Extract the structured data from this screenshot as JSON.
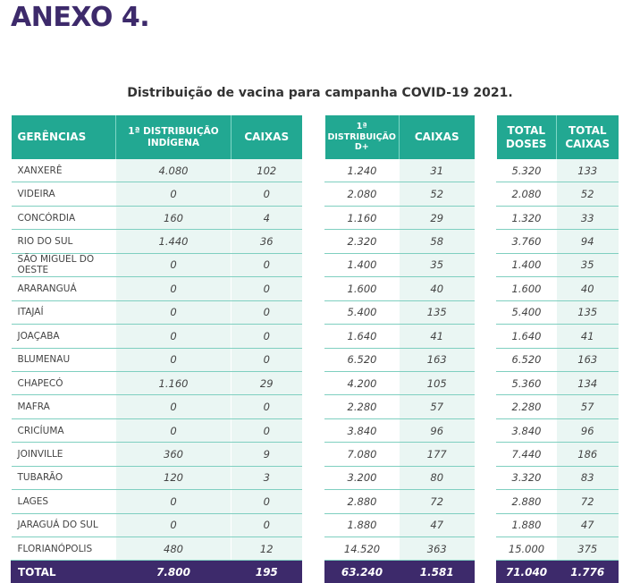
{
  "heading": "ANEXO 4.",
  "subtitle": "Distribuição de vacina para campanha COVID-19 2021.",
  "table1": {
    "headers": [
      "GERÊNCIAS",
      "1ª DISTRIBUIÇÃO INDÍGENA",
      "CAIXAS"
    ],
    "rows": [
      [
        "XANXERÊ",
        "4.080",
        "102"
      ],
      [
        "VIDEIRA",
        "0",
        "0"
      ],
      [
        "CONCÓRDIA",
        "160",
        "4"
      ],
      [
        "RIO DO SUL",
        "1.440",
        "36"
      ],
      [
        "SÃO MIGUEL DO OESTE",
        "0",
        "0"
      ],
      [
        "ARARANGUÁ",
        "0",
        "0"
      ],
      [
        "ITAJAÍ",
        "0",
        "0"
      ],
      [
        "JOAÇABA",
        "0",
        "0"
      ],
      [
        "BLUMENAU",
        "0",
        "0"
      ],
      [
        "CHAPECÓ",
        "1.160",
        "29"
      ],
      [
        "MAFRA",
        "0",
        "0"
      ],
      [
        "CRICÍUMA",
        "0",
        "0"
      ],
      [
        "JOINVILLE",
        "360",
        "9"
      ],
      [
        "TUBARÃO",
        "120",
        "3"
      ],
      [
        "LAGES",
        "0",
        "0"
      ],
      [
        "JARAGUÁ DO SUL",
        "0",
        "0"
      ],
      [
        "FLORIANÓPOLIS",
        "480",
        "12"
      ]
    ],
    "total": [
      "TOTAL",
      "7.800",
      "195"
    ]
  },
  "table2": {
    "headers": [
      "1ª DISTRIBUIÇÃO D+",
      "CAIXAS"
    ],
    "rows": [
      [
        "1.240",
        "31"
      ],
      [
        "2.080",
        "52"
      ],
      [
        "1.160",
        "29"
      ],
      [
        "2.320",
        "58"
      ],
      [
        "1.400",
        "35"
      ],
      [
        "1.600",
        "40"
      ],
      [
        "5.400",
        "135"
      ],
      [
        "1.640",
        "41"
      ],
      [
        "6.520",
        "163"
      ],
      [
        "4.200",
        "105"
      ],
      [
        "2.280",
        "57"
      ],
      [
        "3.840",
        "96"
      ],
      [
        "7.080",
        "177"
      ],
      [
        "3.200",
        "80"
      ],
      [
        "2.880",
        "72"
      ],
      [
        "1.880",
        "47"
      ],
      [
        "14.520",
        "363"
      ]
    ],
    "total": [
      "63.240",
      "1.581"
    ]
  },
  "table3": {
    "headers": [
      "TOTAL DOSES",
      "TOTAL CAIXAS"
    ],
    "rows": [
      [
        "5.320",
        "133"
      ],
      [
        "2.080",
        "52"
      ],
      [
        "1.320",
        "33"
      ],
      [
        "3.760",
        "94"
      ],
      [
        "1.400",
        "35"
      ],
      [
        "1.600",
        "40"
      ],
      [
        "5.400",
        "135"
      ],
      [
        "1.640",
        "41"
      ],
      [
        "6.520",
        "163"
      ],
      [
        "5.360",
        "134"
      ],
      [
        "2.280",
        "57"
      ],
      [
        "3.840",
        "96"
      ],
      [
        "7.440",
        "186"
      ],
      [
        "3.320",
        "83"
      ],
      [
        "2.880",
        "72"
      ],
      [
        "1.880",
        "47"
      ],
      [
        "15.000",
        "375"
      ]
    ],
    "total": [
      "71.040",
      "1.776"
    ]
  }
}
